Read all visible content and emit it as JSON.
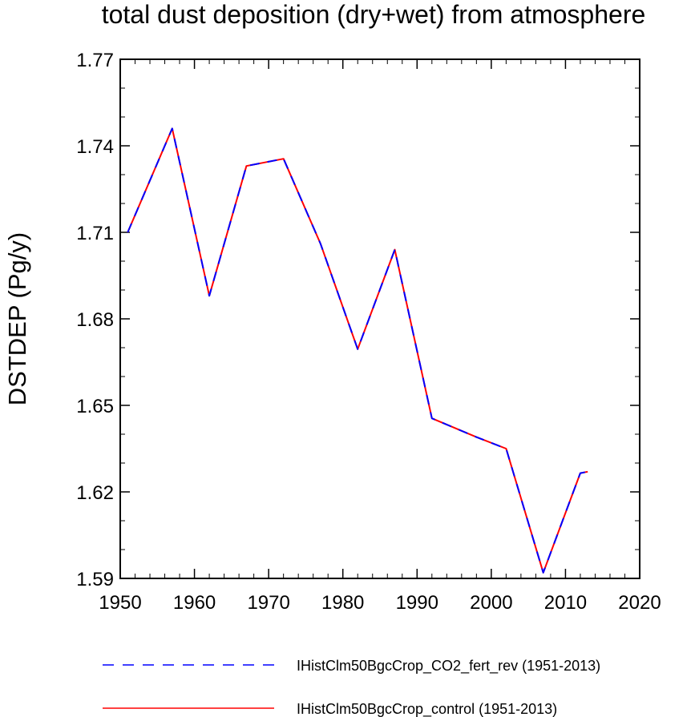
{
  "chart_data": {
    "type": "line",
    "title": "total dust deposition (dry+wet) from atmosphere",
    "ylabel": "DSTDEP  (Pg/y)",
    "xlabel": "",
    "xlim": [
      1950,
      2020
    ],
    "ylim": [
      1.59,
      1.77
    ],
    "xticks": [
      1950,
      1960,
      1970,
      1980,
      1990,
      2000,
      2010,
      2020
    ],
    "xtick_labels": [
      "1950",
      "1960",
      "1970",
      "1980",
      "1990",
      "2000",
      "2010",
      "2020"
    ],
    "yticks": [
      1.59,
      1.62,
      1.65,
      1.68,
      1.71,
      1.74,
      1.77
    ],
    "ytick_labels": [
      "1.59",
      "1.62",
      "1.65",
      "1.68",
      "1.71",
      "1.74",
      "1.77"
    ],
    "grid": false,
    "legend_position": "bottom",
    "x": [
      1951,
      1957,
      1962,
      1967,
      1972,
      1977,
      1982,
      1987,
      1992,
      1998,
      2002,
      2007,
      2012,
      2013
    ],
    "series": [
      {
        "name": "IHistClm50BgcCrop_control (1951-2013)",
        "color": "#ff0000",
        "dash": "solid",
        "values": [
          1.71,
          1.746,
          1.688,
          1.733,
          1.7355,
          1.706,
          1.6695,
          1.704,
          1.6455,
          1.639,
          1.635,
          1.592,
          1.6265,
          1.627
        ]
      },
      {
        "name": "IHistClm50BgcCrop_CO2_fert_rev (1951-2013)",
        "color": "#0000ff",
        "dash": "dashed",
        "values": [
          1.71,
          1.746,
          1.688,
          1.733,
          1.7355,
          1.706,
          1.6695,
          1.704,
          1.6455,
          1.639,
          1.635,
          1.592,
          1.6265,
          1.627
        ]
      }
    ],
    "legend_order": [
      1,
      0
    ]
  }
}
